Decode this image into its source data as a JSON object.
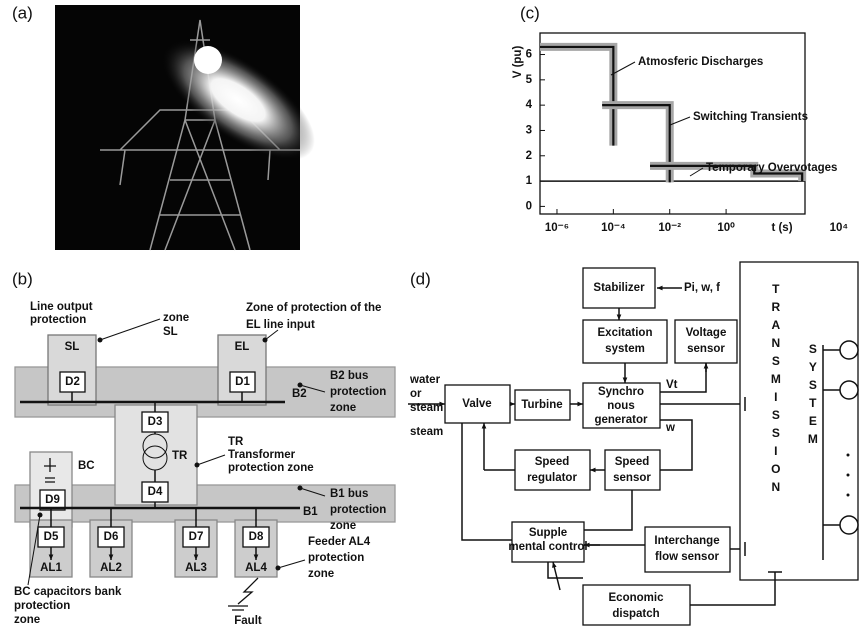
{
  "panel_labels": [
    "(a)",
    "(b)",
    "(c)",
    "(d)"
  ],
  "chart_data": {
    "type": "step",
    "y_label": "V (pu)",
    "x_label": "t (s)",
    "xscale": "log",
    "xlim": [
      2.5e-07,
      630
    ],
    "ylim": [
      -0.3,
      6.85
    ],
    "xticks": [
      {
        "value": 1e-06,
        "label": "10⁻⁶"
      },
      {
        "value": 0.0001,
        "label": "10⁻⁴"
      },
      {
        "value": 0.01,
        "label": "10⁻²"
      },
      {
        "value": 1,
        "label": "10⁰"
      },
      {
        "value": 10000,
        "label": "10⁴"
      }
    ],
    "yticks": [
      0,
      1,
      2,
      3,
      4,
      5,
      6
    ],
    "hline": 1,
    "band_color": "#a6a6a6",
    "series": [
      {
        "name": "Atmosferic Discharges",
        "color": "#111111",
        "x": [
          2.5e-07,
          0.0001,
          0.0001
        ],
        "values": [
          6.3,
          6.3,
          2.4
        ]
      },
      {
        "name": "Switching Transients",
        "color": "#111111",
        "x": [
          4e-05,
          0.01,
          0.01
        ],
        "values": [
          4,
          4,
          0.95
        ]
      },
      {
        "name": "Temporary Overvotages",
        "color": "#111111",
        "x": [
          0.002,
          10,
          10,
          500,
          500
        ],
        "values": [
          1.6,
          1.6,
          1.3,
          1.3,
          1
        ]
      }
    ]
  },
  "diagram_b": {
    "line_output": [
      "Line output",
      "protection"
    ],
    "zone_sl": [
      "zone",
      "SL"
    ],
    "el_zone": [
      "Zone of protection of the",
      "EL line input"
    ],
    "sl": "SL",
    "d2": "D2",
    "el": "EL",
    "d1": "D1",
    "b2": "B2",
    "b2_bus": [
      "B2 bus",
      "protection",
      "zone"
    ],
    "d3": "D3",
    "tr": "TR",
    "d4": "D4",
    "tr_zone": [
      "TR",
      "Transformer",
      "protection zone"
    ],
    "bc": "BC",
    "d9": "D9",
    "b1": "B1",
    "b1_bus": [
      "B1 bus",
      "protection",
      "zone"
    ],
    "feeders": [
      [
        "D5",
        "AL1"
      ],
      [
        "D6",
        "AL2"
      ],
      [
        "D7",
        "AL3"
      ],
      [
        "D8",
        "AL4"
      ]
    ],
    "feeder_zone": [
      "Feeder AL4",
      "protection",
      "zone"
    ],
    "bc_zone": [
      "BC capacitors bank",
      "protection",
      "zone"
    ],
    "fault": "Fault"
  },
  "diagram_d": {
    "stabilizer": "Stabilizer",
    "inputs": "Pi, w, f",
    "excitation": [
      "Excitation",
      "system"
    ],
    "voltage_sensor": [
      "Voltage",
      "sensor"
    ],
    "source": [
      "water",
      "or",
      "steam"
    ],
    "valve": "Valve",
    "turbine": "Turbine",
    "generator": [
      "Synchro",
      "nous",
      "generator"
    ],
    "vt": "Vt",
    "w": "w",
    "speed_regulator": [
      "Speed",
      "regulator"
    ],
    "speed_sensor": [
      "Speed",
      "sensor"
    ],
    "supplemental": [
      "Supple",
      "mental control"
    ],
    "interchange": [
      "Interchange",
      "flow sensor"
    ],
    "economic": [
      "Economic",
      "dispatch"
    ],
    "transmission": "TRANSMISSION",
    "system": "SYSTEM"
  }
}
